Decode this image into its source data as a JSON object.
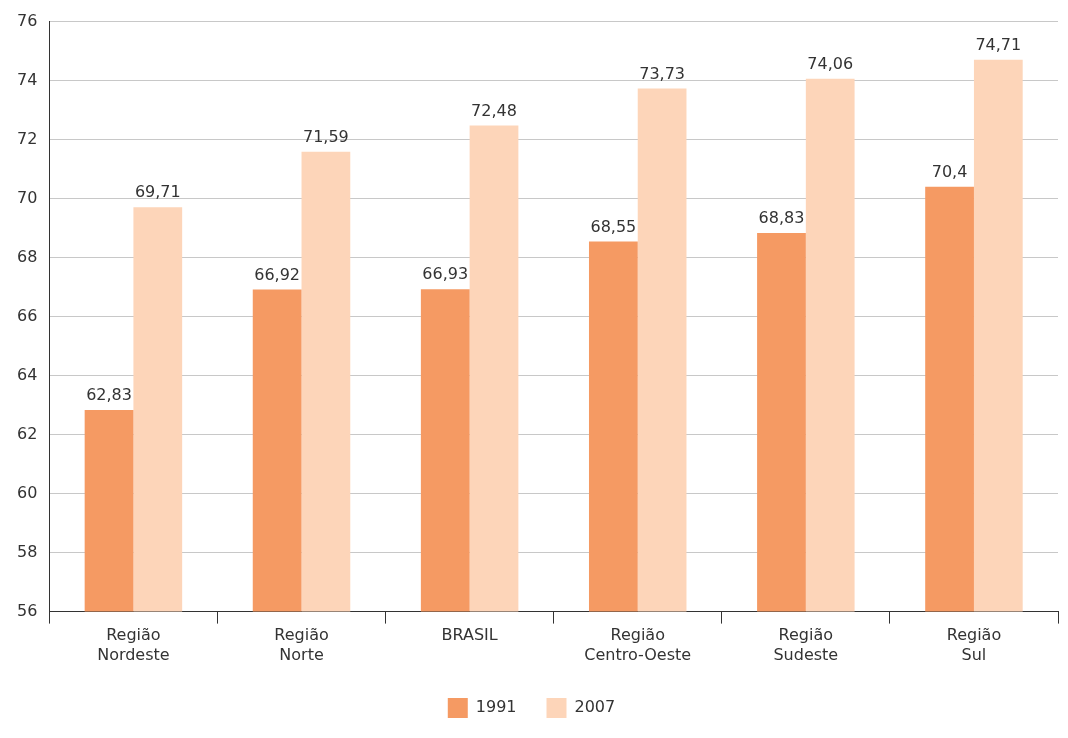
{
  "chart_data": {
    "type": "bar",
    "categories": [
      "Região Nordeste",
      "Região Norte",
      "BRASIL",
      "Região Centro-Oeste",
      "Região Sudeste",
      "Região Sul"
    ],
    "series": [
      {
        "name": "1991",
        "color": "#f59a63",
        "values": [
          62.83,
          66.92,
          66.93,
          68.55,
          68.83,
          70.4
        ],
        "value_labels": [
          "62,83",
          "66,92",
          "66,93",
          "68,55",
          "68,83",
          "70,4"
        ]
      },
      {
        "name": "2007",
        "color": "#fdd5b9",
        "values": [
          69.71,
          71.59,
          72.48,
          73.73,
          74.06,
          74.71
        ],
        "value_labels": [
          "69,71",
          "71,59",
          "72,48",
          "73,73",
          "74,06",
          "74,71"
        ]
      }
    ],
    "ylim": [
      56,
      76
    ],
    "yticks": [
      56,
      58,
      60,
      62,
      64,
      66,
      68,
      70,
      72,
      74,
      76
    ],
    "grid": "y",
    "legend": "bottom"
  }
}
